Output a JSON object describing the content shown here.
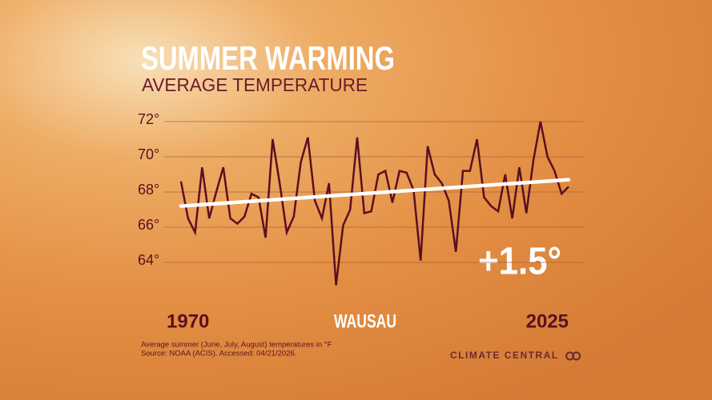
{
  "chart_data": {
    "type": "line",
    "title": "SUMMER WARMING",
    "subtitle": "AVERAGE TEMPERATURE",
    "location": "WAUSAU",
    "annotation": "+1.5°",
    "footnote": "Average summer (June, July, August) temperatures in °F",
    "source": "Source: NOAA (ACIS). Accessed: 04/21/2026.",
    "brand": "CLIMATE CENTRAL",
    "x": [
      1970,
      1971,
      1972,
      1973,
      1974,
      1975,
      1976,
      1977,
      1978,
      1979,
      1980,
      1981,
      1982,
      1983,
      1984,
      1985,
      1986,
      1987,
      1988,
      1989,
      1990,
      1991,
      1992,
      1993,
      1994,
      1995,
      1996,
      1997,
      1998,
      1999,
      2000,
      2001,
      2002,
      2003,
      2004,
      2005,
      2006,
      2007,
      2008,
      2009,
      2010,
      2011,
      2012,
      2013,
      2014,
      2015,
      2016,
      2017,
      2018,
      2019,
      2020,
      2021,
      2022,
      2023,
      2024,
      2025
    ],
    "series": [
      {
        "color": "#5a0f22",
        "values": [
          68.6,
          66.5,
          65.7,
          69.4,
          66.5,
          68.0,
          69.4,
          66.5,
          66.2,
          66.6,
          67.9,
          67.7,
          65.4,
          71.0,
          68.5,
          65.7,
          66.6,
          69.7,
          71.1,
          67.5,
          66.5,
          68.5,
          62.7,
          66.1,
          67.0,
          71.1,
          66.8,
          66.9,
          69.0,
          69.2,
          67.4,
          69.2,
          69.1,
          68.1,
          64.1,
          70.6,
          69.0,
          68.5,
          67.5,
          64.6,
          69.2,
          69.2,
          71.0,
          67.7,
          67.2,
          66.9,
          69.0,
          66.5,
          69.4,
          66.8,
          69.8,
          72.0,
          70.0,
          69.2,
          67.9,
          68.3
        ]
      }
    ],
    "trend": {
      "color": "#ffffff",
      "x": [
        1970,
        2025
      ],
      "values": [
        67.2,
        68.7
      ]
    },
    "xlim": [
      1970,
      2025
    ],
    "xticks": [
      1970,
      2025
    ],
    "ylim": [
      62.5,
      72.5
    ],
    "yticks": [
      {
        "value": 64,
        "label": "64°"
      },
      {
        "value": 66,
        "label": "66°"
      },
      {
        "value": 68,
        "label": "68°"
      },
      {
        "value": 70,
        "label": "70°"
      },
      {
        "value": 72,
        "label": "72°"
      }
    ],
    "grid": true
  }
}
